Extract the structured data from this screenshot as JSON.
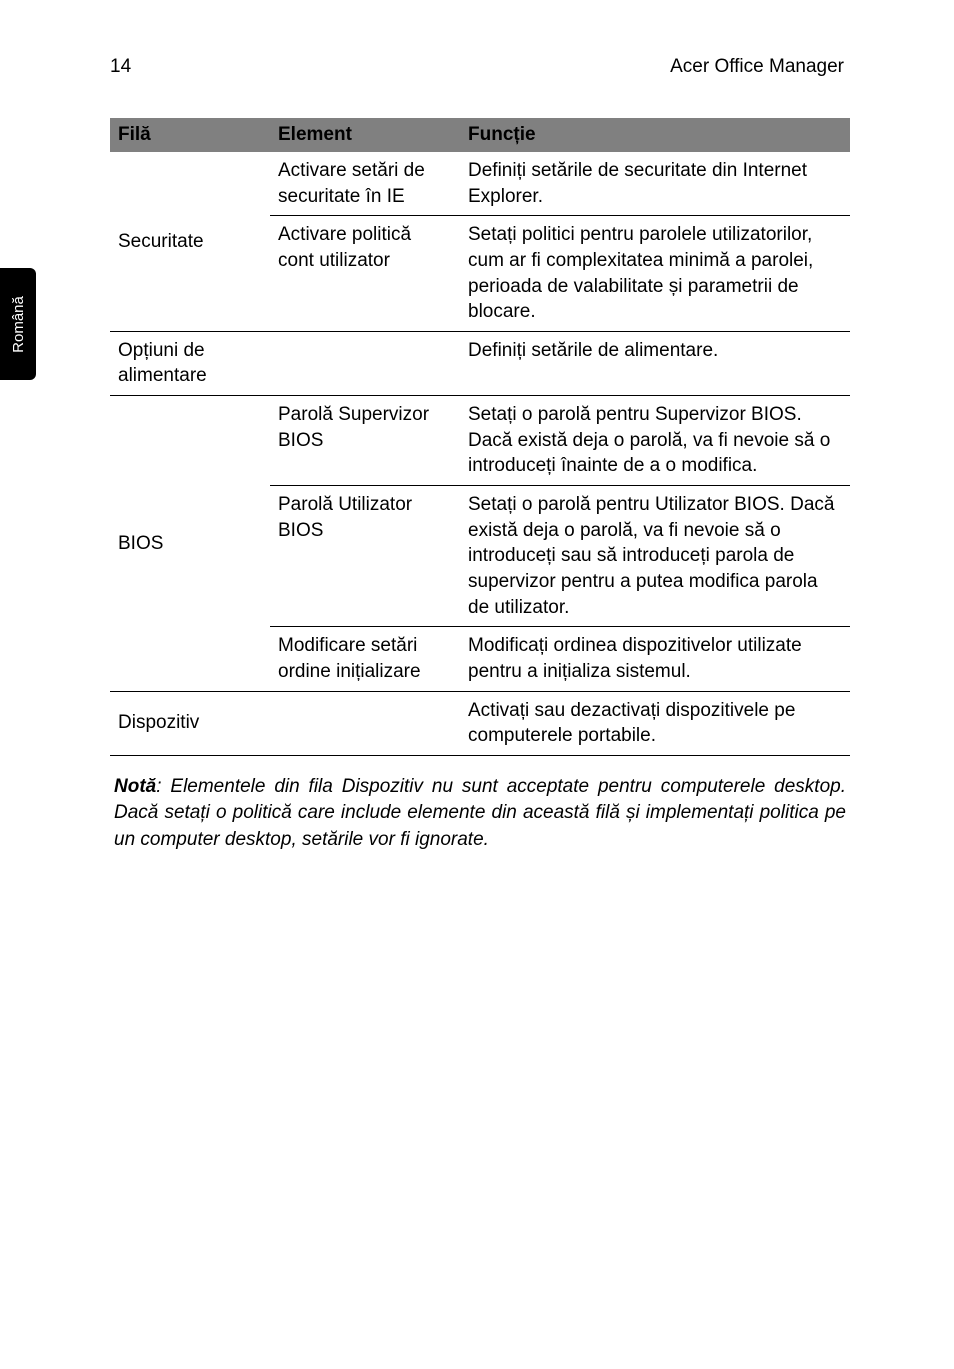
{
  "page": {
    "number": "14",
    "title": "Acer Office Manager",
    "side_tab": "Română"
  },
  "table": {
    "headers": {
      "fila": "Filă",
      "element": "Element",
      "functie": "Funcție"
    },
    "rows": [
      {
        "fila": "Securitate",
        "items": [
          {
            "element": "Activare setări de securitate în IE",
            "functie": "Definiți setările de securitate din Internet Explorer."
          },
          {
            "element": "Activare politică cont utilizator",
            "functie": "Setați politici pentru parolele utilizatorilor, cum ar fi complexitatea minimă a parolei, perioada de valabilitate și parametrii de blocare."
          }
        ]
      },
      {
        "fila": "Opțiuni de alimentare",
        "items": [
          {
            "element": "",
            "functie": "Definiți setările de alimentare."
          }
        ]
      },
      {
        "fila": "BIOS",
        "items": [
          {
            "element": "Parolă Supervizor BIOS",
            "functie": "Setați o parolă pentru Supervizor BIOS. Dacă există deja o parolă, va fi nevoie să o introduceți înainte de a o modifica."
          },
          {
            "element": "Parolă Utilizator BIOS",
            "functie": "Setați o parolă pentru Utilizator BIOS. Dacă există deja o parolă, va fi nevoie să o introduceți sau să introduceți parola de supervizor pentru a putea modifica parola de utilizator."
          },
          {
            "element": "Modificare setări ordine inițializare",
            "functie": "Modificați ordinea dispozitivelor utilizate pentru a inițializa sistemul."
          }
        ]
      },
      {
        "fila": "Dispozitiv",
        "items": [
          {
            "element": "",
            "functie": "Activați sau dezactivați dispozitivele pe computerele portabile."
          }
        ]
      }
    ]
  },
  "note": {
    "bold": "Notă",
    "text": ": Elementele din fila Dispozitiv nu sunt acceptate pentru computerele desktop. Dacă setați o politică care include elemente din această filă și implementați politica pe un computer desktop, setările vor fi ignorate."
  }
}
